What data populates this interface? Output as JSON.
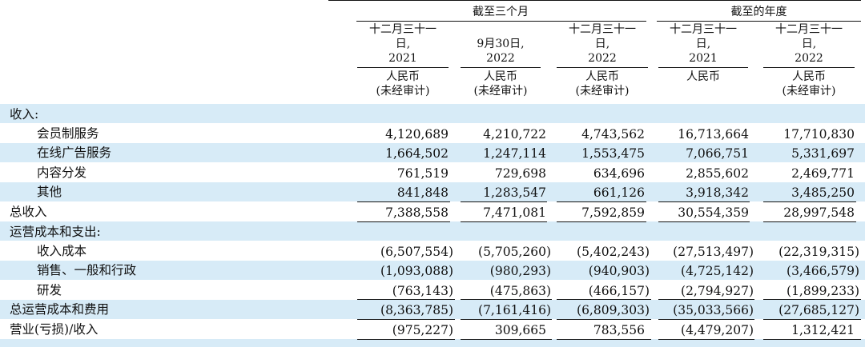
{
  "header": {
    "group_three_months": "截至三个月",
    "group_year": "截至的年度",
    "columns": [
      {
        "line1": "十二月三十一",
        "line2": "日,",
        "line3": "2021",
        "currency": "人民币",
        "note": "(未经审计)"
      },
      {
        "line1": "",
        "line2": "9月30日,",
        "line3": "2022",
        "currency": "人民币",
        "note": "(未经审计)"
      },
      {
        "line1": "十二月三十一",
        "line2": "日,",
        "line3": "2022",
        "currency": "人民币",
        "note": "(未经审计)"
      },
      {
        "line1": "十二月三十一",
        "line2": "日,",
        "line3": "2021",
        "currency": "人民币",
        "note": ""
      },
      {
        "line1": "十二月三十一",
        "line2": "日,",
        "line3": "2022",
        "currency": "人民币",
        "note": "(未经审计)"
      }
    ]
  },
  "rows": [
    {
      "label": "收入:",
      "indent": false,
      "values": [
        "",
        "",
        "",
        "",
        ""
      ]
    },
    {
      "label": "会员制服务",
      "indent": true,
      "values": [
        "4,120,689",
        "4,210,722",
        "4,743,562",
        "16,713,664",
        "17,710,830"
      ]
    },
    {
      "label": "在线广告服务",
      "indent": true,
      "values": [
        "1,664,502",
        "1,247,114",
        "1,553,475",
        "7,066,751",
        "5,331,697"
      ]
    },
    {
      "label": "内容分发",
      "indent": true,
      "values": [
        "761,519",
        "729,698",
        "634,696",
        "2,855,602",
        "2,469,771"
      ]
    },
    {
      "label": "其他",
      "indent": true,
      "values": [
        "841,848",
        "1,283,547",
        "661,126",
        "3,918,342",
        "3,485,250"
      ]
    },
    {
      "label": "总收入",
      "indent": false,
      "values": [
        "7,388,558",
        "7,471,081",
        "7,592,859",
        "30,554,359",
        "28,997,548"
      ]
    },
    {
      "label": "运营成本和支出:",
      "indent": false,
      "values": [
        "",
        "",
        "",
        "",
        ""
      ]
    },
    {
      "label": "收入成本",
      "indent": true,
      "values": [
        "(6,507,554)",
        "(5,705,260)",
        "(5,402,243)",
        "(27,513,497)",
        "(22,319,315)"
      ]
    },
    {
      "label": "销售、一般和行政",
      "indent": true,
      "values": [
        "(1,093,088)",
        "(980,293)",
        "(940,903)",
        "(4,725,142)",
        "(3,466,579)"
      ]
    },
    {
      "label": "研发",
      "indent": true,
      "values": [
        "(763,143)",
        "(475,863)",
        "(466,157)",
        "(2,794,927)",
        "(1,899,233)"
      ]
    },
    {
      "label": "总运营成本和费用",
      "indent": false,
      "values": [
        "(8,363,785)",
        "(7,161,416)",
        "(6,809,303)",
        "(35,033,566)",
        "(27,685,127)"
      ]
    },
    {
      "label": "营业(亏损)/收入",
      "indent": false,
      "values": [
        "(975,227)",
        "309,665",
        "783,556",
        "(4,479,207)",
        "1,312,421"
      ]
    }
  ]
}
